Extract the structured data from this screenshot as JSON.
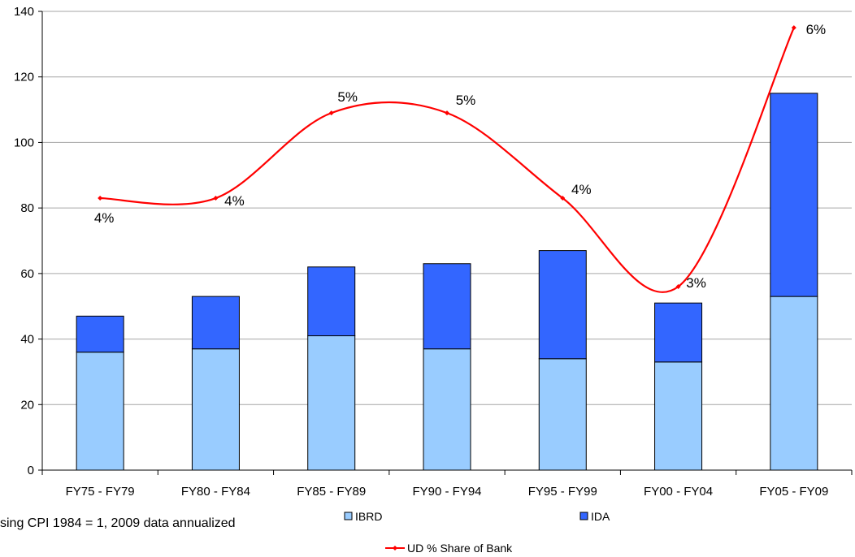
{
  "chart_data": {
    "type": "bar",
    "stacked": true,
    "categories": [
      "FY75 - FY79",
      "FY80 - FY84",
      "FY85 - FY89",
      "FY90 - FY94",
      "FY95 - FY99",
      "FY00 - FY04",
      "FY05 - FY09"
    ],
    "series": [
      {
        "name": "IBRD",
        "type": "bar",
        "color": "#99ccff",
        "values": [
          36,
          37,
          41,
          37,
          34,
          33,
          53
        ]
      },
      {
        "name": "IDA",
        "type": "bar",
        "color": "#3366ff",
        "values": [
          11,
          16,
          21,
          26,
          33,
          18,
          62
        ]
      },
      {
        "name": "UD % Share of Bank",
        "type": "line",
        "color": "#ff0000",
        "values": [
          83,
          83,
          109,
          109,
          83,
          56,
          135
        ],
        "data_labels": [
          "4%",
          "4%",
          "5%",
          "5%",
          "4%",
          "3%",
          "6%"
        ]
      }
    ],
    "ylim": [
      0,
      140
    ],
    "yticks": [
      "0",
      "20",
      "40",
      "60",
      "80",
      "100",
      "120",
      "140"
    ],
    "grid": true,
    "legend_placement": "bottom",
    "note": "sing CPI 1984 = 1, 2009 data annualized"
  }
}
